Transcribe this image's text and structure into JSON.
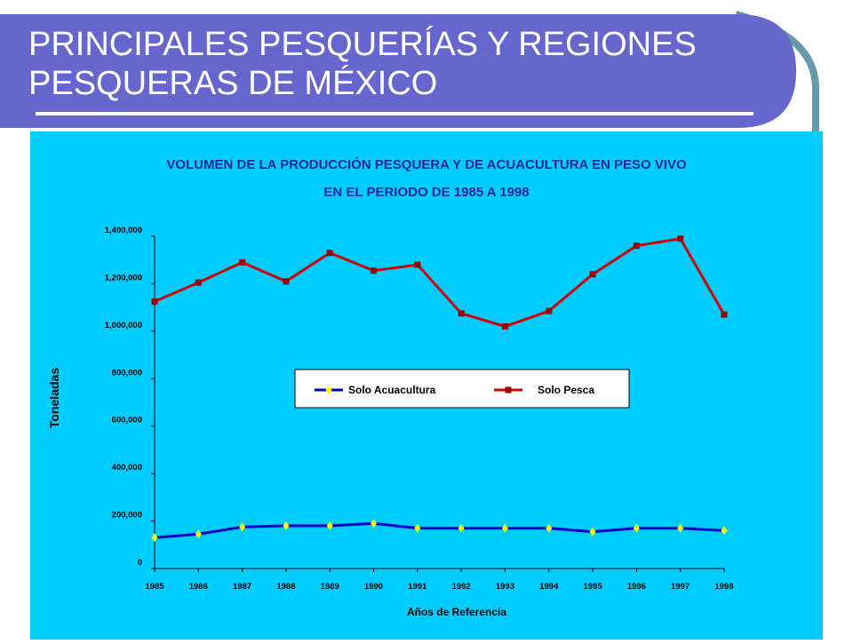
{
  "slide": {
    "title_line1": "PRINCIPALES PESQUERÍAS Y REGIONES",
    "title_line2": "PESQUERAS DE MÉXICO"
  },
  "colors": {
    "title_band": "#6666cc",
    "title_accent": "#6699aa",
    "chart_bg": "#00ccff",
    "acuacultura_line": "#0000cc",
    "acuacultura_marker": "#ffff00",
    "pesca_line": "#cc0000",
    "pesca_marker": "#990000"
  },
  "chart_data": {
    "type": "line",
    "title_line1": "VOLUMEN DE LA PRODUCCIÓN PESQUERA Y DE ACUACULTURA EN PESO VIVO",
    "title_line2": "EN EL PERIODO DE 1985 A 1998",
    "xlabel": "Años de Referencia",
    "ylabel": "Toneladas",
    "ylim": [
      0,
      1400000
    ],
    "yticks": [
      "0",
      "200,000",
      "400,000",
      "600,000",
      "800,000",
      "1,000,000",
      "1,200,000",
      "1,400,000"
    ],
    "x": [
      "1985",
      "1986",
      "1987",
      "1988",
      "1989",
      "1990",
      "1991",
      "1992",
      "1993",
      "1994",
      "1995",
      "1996",
      "1997",
      "1998"
    ],
    "legend_position": "center",
    "grid": false,
    "series": [
      {
        "name": "Solo Acuacultura",
        "marker": "diamond",
        "values": [
          130000,
          145000,
          175000,
          180000,
          180000,
          190000,
          170000,
          170000,
          170000,
          170000,
          155000,
          170000,
          170000,
          160000
        ]
      },
      {
        "name": "Solo Pesca",
        "marker": "square",
        "values": [
          1125000,
          1205000,
          1290000,
          1210000,
          1330000,
          1255000,
          1280000,
          1075000,
          1020000,
          1085000,
          1240000,
          1360000,
          1390000,
          1070000
        ]
      }
    ]
  }
}
